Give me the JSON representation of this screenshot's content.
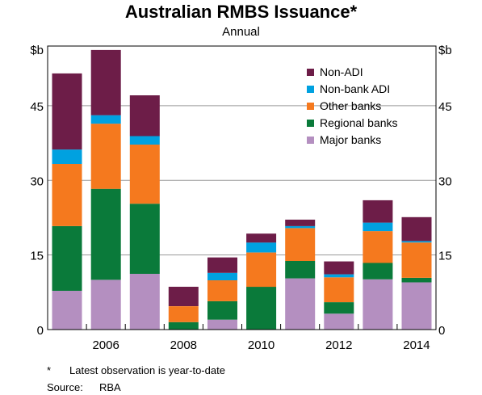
{
  "chart_data": {
    "type": "bar",
    "stacked": true,
    "title": "Australian RMBS Issuance*",
    "subtitle": "Annual",
    "ylabel_left": "$b",
    "ylabel_right": "$b",
    "ylim": [
      0,
      57
    ],
    "yticks": [
      0,
      15,
      30,
      45
    ],
    "grid": true,
    "legend_position": "top-right",
    "categories": [
      "2005",
      "2006",
      "2007",
      "2008",
      "2009",
      "2010",
      "2011",
      "2012",
      "2013",
      "2014"
    ],
    "xtick_labels": [
      "2006",
      "2008",
      "2010",
      "2012",
      "2014"
    ],
    "series": [
      {
        "name": "Major banks",
        "color": "#b48fc0",
        "values": [
          7.8,
          10.0,
          11.2,
          0.0,
          2.0,
          0.0,
          10.3,
          3.2,
          10.1,
          9.5
        ]
      },
      {
        "name": "Regional banks",
        "color": "#0a7a3a",
        "values": [
          13.0,
          18.3,
          14.1,
          1.5,
          3.7,
          8.6,
          3.5,
          2.3,
          3.3,
          0.9
        ]
      },
      {
        "name": "Other banks",
        "color": "#f5791e",
        "values": [
          12.5,
          13.1,
          11.9,
          3.2,
          4.2,
          6.9,
          6.6,
          5.0,
          6.4,
          7.1
        ]
      },
      {
        "name": "Non-bank ADI",
        "color": "#00a1e0",
        "values": [
          2.9,
          1.7,
          1.7,
          0.0,
          1.5,
          2.0,
          0.4,
          0.6,
          1.7,
          0.3
        ]
      },
      {
        "name": "Non-ADI",
        "color": "#6d1d48",
        "values": [
          15.3,
          13.1,
          8.2,
          3.9,
          3.1,
          1.8,
          1.3,
          2.6,
          4.5,
          4.8
        ]
      }
    ]
  },
  "footnote": {
    "marker": "*",
    "text": "Latest observation is year-to-date"
  },
  "source": {
    "label": "Source:",
    "text": "RBA"
  }
}
